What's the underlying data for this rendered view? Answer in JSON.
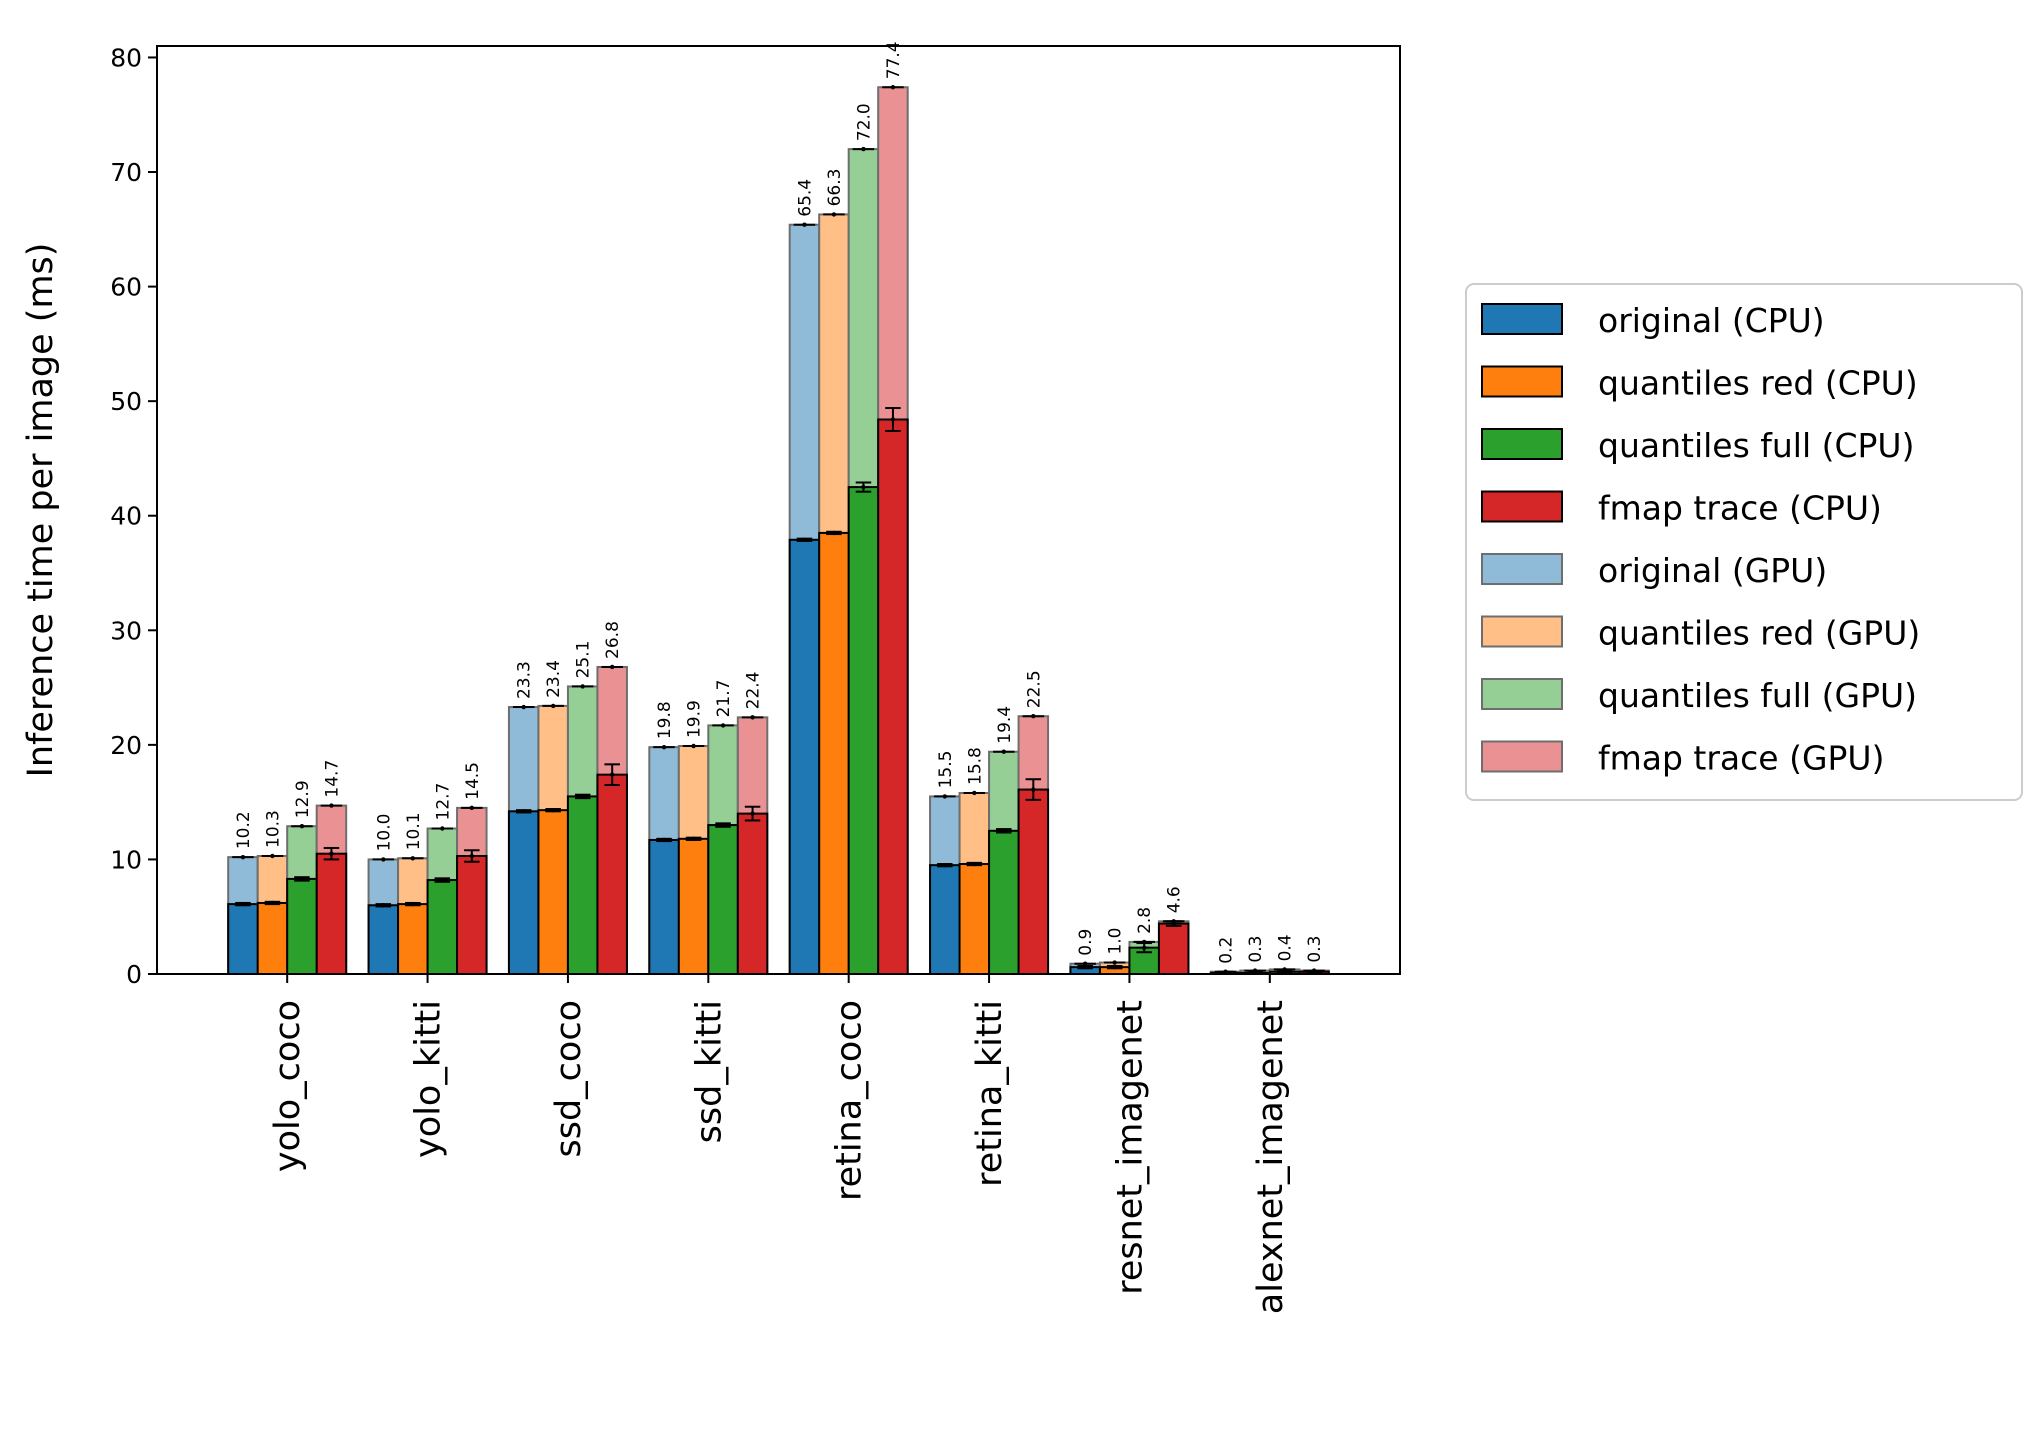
{
  "chart_data": {
    "type": "bar",
    "title": "",
    "xlabel": "",
    "ylabel": "Inference time per image (ms)",
    "ylim": [
      0,
      81
    ],
    "yticks": [
      0,
      10,
      20,
      30,
      40,
      50,
      60,
      70,
      80
    ],
    "grid": false,
    "legend_position": "right",
    "categories": [
      "yolo_coco",
      "yolo_kitti",
      "ssd_coco",
      "ssd_kitti",
      "retina_coco",
      "retina_kitti",
      "resnet_imagenet",
      "alexnet_imagenet"
    ],
    "series": [
      {
        "name": "original (CPU)",
        "color": "#1f77b4",
        "device": "CPU",
        "values": [
          6.1,
          6.0,
          14.2,
          11.7,
          37.9,
          9.5,
          0.6,
          0.1
        ]
      },
      {
        "name": "quantiles red (CPU)",
        "color": "#ff7f0e",
        "device": "CPU",
        "values": [
          6.2,
          6.1,
          14.3,
          11.8,
          38.5,
          9.6,
          0.6,
          0.1
        ]
      },
      {
        "name": "quantiles full (CPU)",
        "color": "#2ca02c",
        "device": "CPU",
        "values": [
          8.3,
          8.2,
          15.5,
          13.0,
          42.5,
          12.5,
          2.3,
          0.2
        ]
      },
      {
        "name": "fmap trace (CPU)",
        "color": "#d62728",
        "device": "CPU",
        "values": [
          10.5,
          10.3,
          17.4,
          14.0,
          48.4,
          16.1,
          4.4,
          0.2
        ]
      },
      {
        "name": "original (GPU)",
        "color": "#8fbbd9",
        "device": "GPU",
        "values": [
          10.2,
          10.0,
          23.3,
          19.8,
          65.4,
          15.5,
          0.9,
          0.2
        ],
        "labels": [
          "10.2",
          "10.0",
          "23.3",
          "19.8",
          "65.4",
          "15.5",
          "0.9",
          "0.2"
        ]
      },
      {
        "name": "quantiles red (GPU)",
        "color": "#ffbf86",
        "device": "GPU",
        "values": [
          10.3,
          10.1,
          23.4,
          19.9,
          66.3,
          15.8,
          1.0,
          0.3
        ],
        "labels": [
          "10.3",
          "10.1",
          "23.4",
          "19.9",
          "66.3",
          "15.8",
          "1.0",
          "0.3"
        ]
      },
      {
        "name": "quantiles full (GPU)",
        "color": "#95cf95",
        "device": "GPU",
        "values": [
          12.9,
          12.7,
          25.1,
          21.7,
          72.0,
          19.4,
          2.8,
          0.4
        ],
        "labels": [
          "12.9",
          "12.7",
          "25.1",
          "21.7",
          "72.0",
          "19.4",
          "2.8",
          "0.4"
        ]
      },
      {
        "name": "fmap trace (GPU)",
        "color": "#ea9293",
        "device": "GPU",
        "values": [
          14.7,
          14.5,
          26.8,
          22.4,
          77.4,
          22.5,
          4.6,
          0.3
        ],
        "labels": [
          "14.7",
          "14.5",
          "26.8",
          "22.4",
          "77.4",
          "22.5",
          "4.6",
          "0.3"
        ]
      }
    ],
    "error_bars": {
      "fmap trace (CPU)": [
        0.5,
        0.5,
        0.9,
        0.6,
        1.0,
        0.9,
        0.2,
        0.05
      ],
      "quantiles full (CPU)": [
        0.15,
        0.15,
        0.15,
        0.15,
        0.4,
        0.15,
        0.4,
        0.05
      ]
    }
  }
}
